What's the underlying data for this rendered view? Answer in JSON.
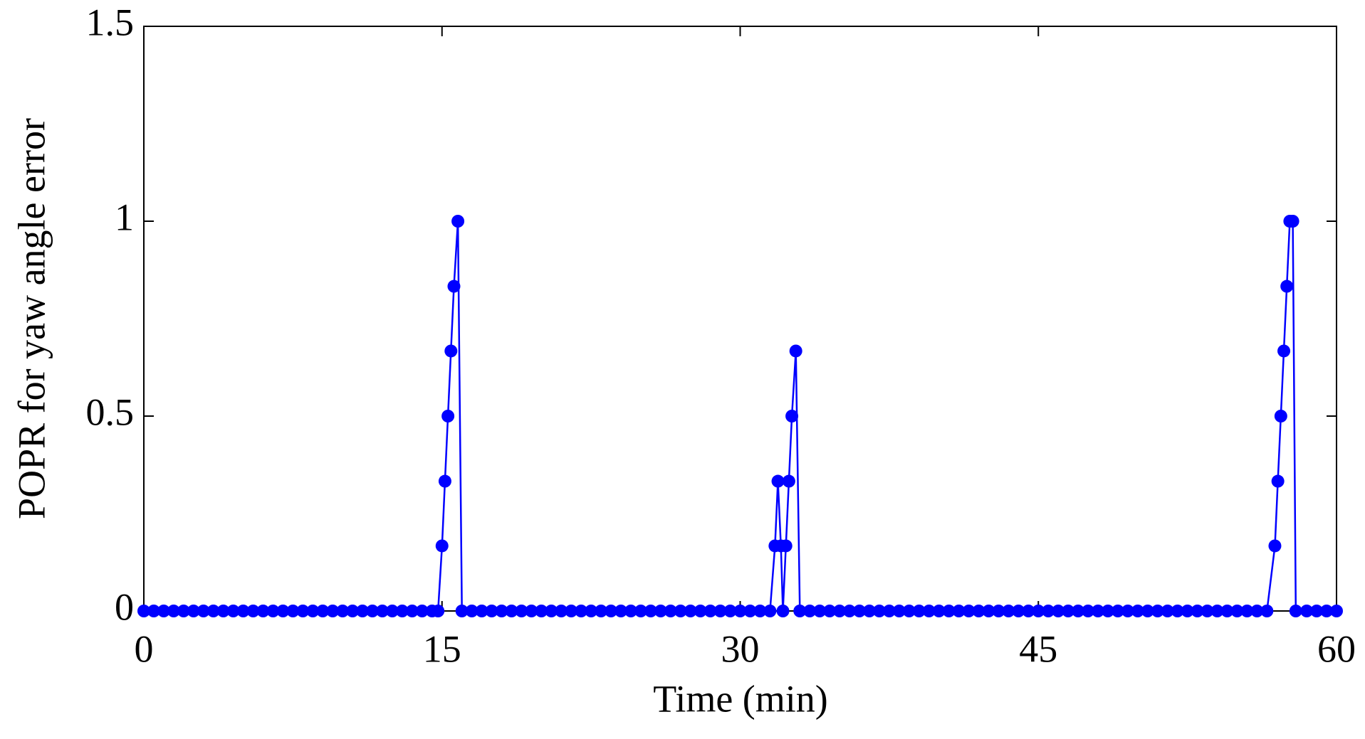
{
  "chart_data": {
    "type": "line",
    "xlabel": "Time (min)",
    "ylabel": "POPR for yaw angle error",
    "xlim": [
      0,
      60
    ],
    "ylim": [
      0,
      1.5
    ],
    "xticks": [
      0,
      15,
      30,
      45,
      60
    ],
    "yticks": [
      0,
      0.5,
      1,
      1.5
    ],
    "x": [
      0,
      0.5,
      1,
      1.5,
      2,
      2.5,
      3,
      3.5,
      4,
      4.5,
      5,
      5.5,
      6,
      6.5,
      7,
      7.5,
      8,
      8.5,
      9,
      9.5,
      10,
      10.5,
      11,
      11.5,
      12,
      12.5,
      13,
      13.5,
      14,
      14.5,
      14.8,
      15,
      15.15,
      15.3,
      15.45,
      15.6,
      15.8,
      16,
      16.5,
      17,
      17.5,
      18,
      18.5,
      19,
      19.5,
      20,
      20.5,
      21,
      21.5,
      22,
      22.5,
      23,
      23.5,
      24,
      24.5,
      25,
      25.5,
      26,
      26.5,
      27,
      27.5,
      28,
      28.5,
      29,
      29.5,
      30,
      30.5,
      31,
      31.5,
      31.75,
      31.9,
      32.05,
      32.15,
      32.3,
      32.45,
      32.6,
      32.8,
      33,
      33.5,
      34,
      34.5,
      35,
      35.5,
      36,
      36.5,
      37,
      37.5,
      38,
      38.5,
      39,
      39.5,
      40,
      40.5,
      41,
      41.5,
      42,
      42.5,
      43,
      43.5,
      44,
      44.5,
      45,
      45.5,
      46,
      46.5,
      47,
      47.5,
      48,
      48.5,
      49,
      49.5,
      50,
      50.5,
      51,
      51.5,
      52,
      52.5,
      53,
      53.5,
      54,
      54.5,
      55,
      55.5,
      56,
      56.5,
      56.9,
      57.05,
      57.2,
      57.35,
      57.5,
      57.65,
      57.8,
      57.95,
      58.5,
      59,
      59.5,
      60
    ],
    "series": [
      {
        "color": "#0000ff",
        "values": [
          0,
          0,
          0,
          0,
          0,
          0,
          0,
          0,
          0,
          0,
          0,
          0,
          0,
          0,
          0,
          0,
          0,
          0,
          0,
          0,
          0,
          0,
          0,
          0,
          0,
          0,
          0,
          0,
          0,
          0,
          0,
          0.167,
          0.333,
          0.5,
          0.667,
          0.833,
          1,
          0,
          0,
          0,
          0,
          0,
          0,
          0,
          0,
          0,
          0,
          0,
          0,
          0,
          0,
          0,
          0,
          0,
          0,
          0,
          0,
          0,
          0,
          0,
          0,
          0,
          0,
          0,
          0,
          0,
          0,
          0,
          0,
          0.167,
          0.333,
          0.167,
          0,
          0.167,
          0.333,
          0.5,
          0.667,
          0,
          0,
          0,
          0,
          0,
          0,
          0,
          0,
          0,
          0,
          0,
          0,
          0,
          0,
          0,
          0,
          0,
          0,
          0,
          0,
          0,
          0,
          0,
          0,
          0,
          0,
          0,
          0,
          0,
          0,
          0,
          0,
          0,
          0,
          0,
          0,
          0,
          0,
          0,
          0,
          0,
          0,
          0,
          0,
          0,
          0,
          0,
          0,
          0.167,
          0.333,
          0.5,
          0.667,
          0.833,
          1,
          1,
          0,
          0,
          0,
          0,
          0
        ]
      }
    ]
  }
}
